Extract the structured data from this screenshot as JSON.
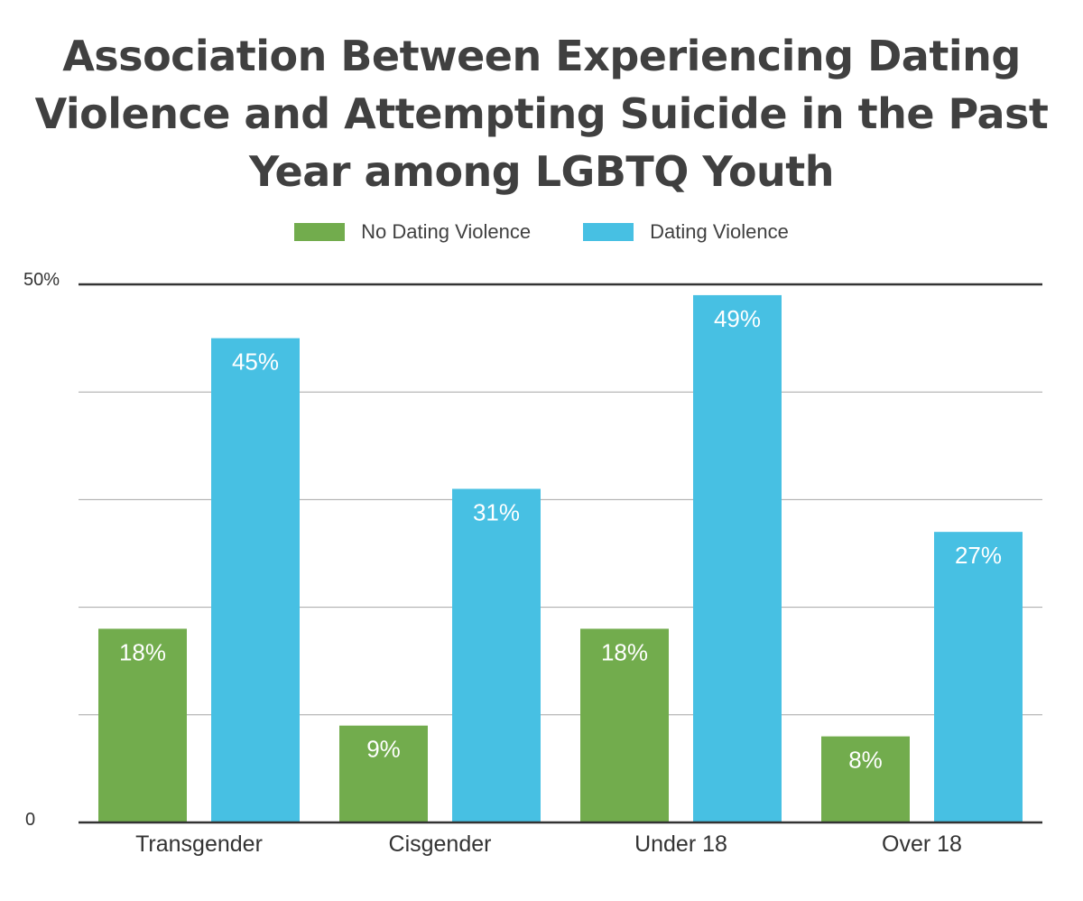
{
  "chart_data": {
    "type": "bar",
    "title": "Association Between Experiencing Dating Violence and Attempting Suicide in the Past Year among LGBTQ Youth",
    "categories": [
      "Transgender",
      "Cisgender",
      "Under 18",
      "Over 18"
    ],
    "series": [
      {
        "name": "No Dating Violence",
        "color": "#72ac4d",
        "values": [
          18,
          9,
          18,
          8
        ],
        "labels": [
          "18%",
          "9%",
          "18%",
          "8%"
        ]
      },
      {
        "name": "Dating Violence",
        "color": "#47c0e3",
        "values": [
          45,
          31,
          49,
          27
        ],
        "labels": [
          "45%",
          "31%",
          "49%",
          "27%"
        ]
      }
    ],
    "ylim": [
      0,
      50
    ],
    "yticks": [
      0,
      10,
      20,
      30,
      40,
      50
    ],
    "ytick_labels": {
      "top": "50%",
      "bottom": "0"
    },
    "xlabel": "",
    "ylabel": "",
    "grid": true,
    "legend_position": "top"
  }
}
